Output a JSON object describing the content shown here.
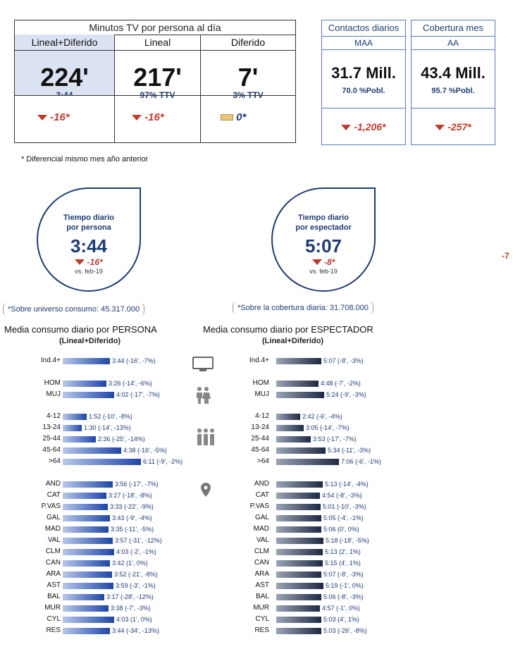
{
  "summary": {
    "title": "Minutos TV por persona al día",
    "columns": [
      {
        "label": "Lineal+Diferido",
        "big": "224'",
        "sub": "3:44",
        "diff": "-16*",
        "trend": "down"
      },
      {
        "label": "Lineal",
        "big": "217'",
        "sub": "97% TTV",
        "diff": "-16*",
        "trend": "down"
      },
      {
        "label": "Diferido",
        "big": "7'",
        "sub": "3% TTV",
        "diff": "0*",
        "trend": "flat"
      }
    ],
    "footnote": "* Diferencial mismo mes año anterior"
  },
  "cards": [
    {
      "title": "Contactos diarios",
      "period": "MAA",
      "value": "31.7 Mill.",
      "pobl": "70.0 %Pobl.",
      "diff": "-1,206*"
    },
    {
      "title": "Cobertura mes",
      "period": "AA",
      "value": "43.4 Mill.",
      "pobl": "95.7 %Pobl.",
      "diff": "-257*"
    }
  ],
  "drops": [
    {
      "line1": "Tiempo diario",
      "line2": "por persona",
      "value": "3:44",
      "diff": "-16*",
      "vs": "vs. feb-19"
    },
    {
      "line1": "Tiempo diario",
      "line2": "por espectador",
      "value": "5:07",
      "diff": "-8*",
      "vs": "vs. feb-19"
    }
  ],
  "stray": "-7",
  "notes": {
    "left": "*Sobre universo consumo: 45.317.000",
    "right": "*Sobre la cobertura diaria: 31.708.000"
  },
  "sections": {
    "left": {
      "title": "Media consumo diario por PERSONA",
      "subtitle": "(Lineal+Diferido)"
    },
    "right": {
      "title": "Media consumo diario por ESPECTADOR",
      "subtitle": "(Lineal+Diferido)"
    }
  },
  "icons": [
    "tv-icon",
    "couple-icon",
    "group-icon",
    "location-pin-icon"
  ],
  "colors": {
    "accent": "#1e46a8",
    "dark": "#1e2a44",
    "negative": "#c0392b"
  },
  "chart_data": [
    {
      "type": "bar",
      "title": "Media consumo diario por PERSONA",
      "unit": "minutes",
      "categories": [
        "Ind.4+",
        "HOM",
        "MUJ",
        "4-12",
        "13-24",
        "25-44",
        "45-64",
        ">64",
        "AND",
        "CAT",
        "P.VAS",
        "GAL",
        "MAD",
        "VAL",
        "CLM",
        "CAN",
        "ARA",
        "AST",
        "BAL",
        "MUR",
        "CYL",
        "RES"
      ],
      "values": [
        224,
        206,
        242,
        112,
        90,
        156,
        278,
        371,
        236,
        207,
        213,
        223,
        215,
        237,
        243,
        222,
        232,
        239,
        197,
        218,
        243,
        224
      ],
      "labels": [
        "3:44 (-16', -7%)",
        "3:26 (-14', -6%)",
        "4:02 (-17', -7%)",
        "1:52 (-10', -8%)",
        "1:30 (-14', -13%)",
        "2:36 (-25', -14%)",
        "4:38 (-16', -5%)",
        "6:11 (-9', -2%)",
        "3:56 (-17', -7%)",
        "3:27 (-18', -8%)",
        "3:33 (-22', -9%)",
        "3:43 (-9', -4%)",
        "3:35 (-11', -5%)",
        "3:57 (-31', -12%)",
        "4:03 (-2', -1%)",
        "3:42 (1', 0%)",
        "3:52 (-21', -8%)",
        "3:59 (-3', -1%)",
        "3:17 (-28', -12%)",
        "3:38 (-7', -3%)",
        "4:03 (1', 0%)",
        "3:44 (-34', -13%)"
      ]
    },
    {
      "type": "bar",
      "title": "Media consumo diario por ESPECTADOR",
      "unit": "minutes",
      "categories": [
        "Ind.4+",
        "HOM",
        "MUJ",
        "4-12",
        "13-24",
        "25-44",
        "45-64",
        ">64",
        "AND",
        "CAT",
        "P.VAS",
        "GAL",
        "MAD",
        "VAL",
        "CLM",
        "CAN",
        "ARA",
        "AST",
        "BAL",
        "MUR",
        "CYL",
        "RES"
      ],
      "values": [
        307,
        288,
        324,
        162,
        185,
        233,
        334,
        426,
        313,
        294,
        301,
        305,
        306,
        318,
        313,
        315,
        307,
        319,
        306,
        297,
        303,
        303
      ],
      "labels": [
        "5:07 (-8', -3%)",
        "4:48 (-7', -2%)",
        "5:24 (-9', -3%)",
        "2:42 (-6', -4%)",
        "3:05 (-14', -7%)",
        "3:53 (-17', -7%)",
        "5:34 (-11', -3%)",
        "7:06 (-6', -1%)",
        "5:13 (-14', -4%)",
        "4:54 (-8', -3%)",
        "5:01 (-10', -3%)",
        "5:05 (-4', -1%)",
        "5:06 (0', 0%)",
        "5:18 (-18', -5%)",
        "5:13 (2', 1%)",
        "5:15 (4', 1%)",
        "5:07 (-8', -3%)",
        "5:19 (-1', 0%)",
        "5:06 (-8', -3%)",
        "4:57 (-1', 0%)",
        "5:03 (4', 1%)",
        "5:03 (-26', -8%)"
      ]
    }
  ]
}
